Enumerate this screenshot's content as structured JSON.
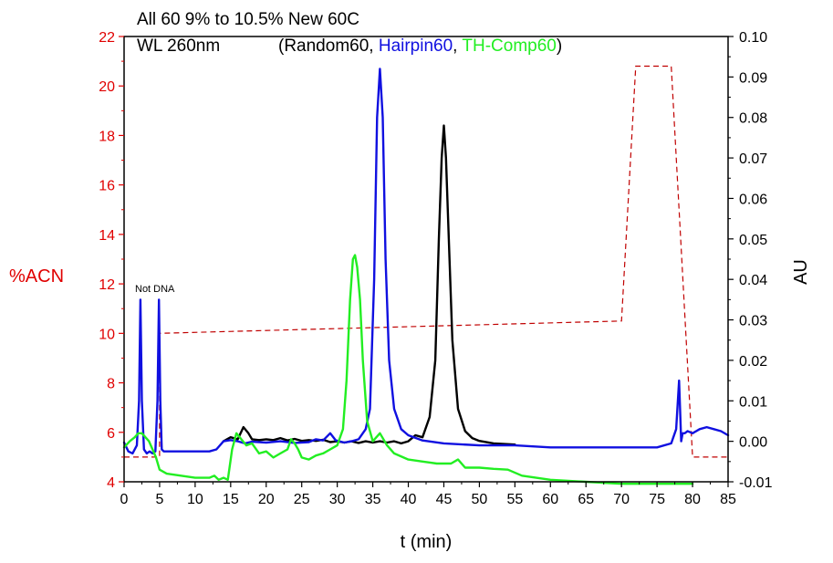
{
  "chart_data": {
    "type": "line",
    "title_line1": "All 60 9% to 10.5% New 60C",
    "title_line2_prefix": "WL 260nm",
    "legend": {
      "open": "(",
      "items": [
        {
          "label": "Random60",
          "color": "#000000"
        },
        {
          "label": "Hairpin60",
          "color": "#1010e0"
        },
        {
          "label": "TH-Comp60",
          "color": "#22ee22"
        }
      ],
      "separator": ", ",
      "close": ")"
    },
    "xlabel": "t (min)",
    "ylabel_left": "%ACN",
    "ylabel_right": "AU",
    "xlim": [
      0,
      85
    ],
    "ylim_left": [
      4,
      22
    ],
    "ylim_right": [
      -0.01,
      0.1
    ],
    "x_ticks": [
      "0",
      "5",
      "10",
      "15",
      "20",
      "25",
      "30",
      "35",
      "40",
      "45",
      "50",
      "55",
      "60",
      "65",
      "70",
      "75",
      "80",
      "85"
    ],
    "y_left_ticks": [
      "4",
      "6",
      "8",
      "10",
      "12",
      "14",
      "16",
      "18",
      "20",
      "22"
    ],
    "y_right_ticks": [
      "-0.01",
      "0.00",
      "0.01",
      "0.02",
      "0.03",
      "0.04",
      "0.05",
      "0.06",
      "0.07",
      "0.08",
      "0.09",
      "0.10"
    ],
    "annotation": "Not DNA",
    "colors": {
      "left_axis": "#e00000",
      "gradient": "#c00000"
    },
    "gradient_acn": {
      "name": "%ACN",
      "x": [
        0,
        5,
        5,
        70,
        72,
        77,
        80,
        85
      ],
      "y": [
        5,
        5,
        10,
        10.5,
        20.8,
        20.8,
        5,
        5
      ]
    },
    "series": [
      {
        "name": "Random60",
        "color": "#000000",
        "x": [
          14,
          15,
          16,
          16.8,
          17.5,
          18,
          19,
          20,
          21,
          22,
          23,
          24,
          25,
          26,
          27,
          28,
          29,
          30,
          31,
          32,
          33,
          34,
          35,
          36,
          37,
          38,
          39,
          40,
          41,
          42,
          43,
          43.8,
          44.3,
          44.7,
          45,
          45.3,
          45.7,
          46.2,
          47,
          48,
          49,
          50,
          52,
          55
        ],
        "y": [
          0.0,
          0.001,
          0.0005,
          0.0035,
          0.002,
          0.0005,
          0.0003,
          0.0005,
          0.0003,
          0.0008,
          0.0002,
          0.0006,
          0.0001,
          0.0003,
          0.0001,
          0.0004,
          -0.0002,
          0.0,
          -0.0003,
          0.0,
          -0.0004,
          0.0,
          -0.0003,
          0.0,
          -0.0003,
          0.0,
          -0.0005,
          0.0,
          0.0015,
          0.001,
          0.006,
          0.02,
          0.05,
          0.07,
          0.078,
          0.07,
          0.05,
          0.025,
          0.008,
          0.0025,
          0.0008,
          0.0001,
          -0.0005,
          -0.0008
        ]
      },
      {
        "name": "Hairpin60",
        "color": "#1010e0",
        "x": [
          0,
          0.6,
          1.2,
          1.8,
          2.1,
          2.3,
          2.5,
          2.8,
          3.2,
          3.6,
          4.0,
          4.4,
          4.7,
          4.9,
          5.1,
          5.3,
          5.6,
          6,
          8,
          10,
          12,
          13,
          14,
          15,
          16,
          17,
          18,
          20,
          22,
          24,
          26,
          27,
          28,
          29,
          29.8,
          30.3,
          31,
          32,
          33,
          34,
          34.6,
          35.2,
          35.6,
          36,
          36.4,
          36.8,
          37.3,
          38,
          39,
          40,
          42,
          45,
          50,
          55,
          60,
          65,
          70,
          75,
          77,
          77.7,
          78.1,
          78.4,
          78.6,
          78.9,
          79.3,
          80,
          81,
          82,
          83,
          84,
          85
        ],
        "y": [
          -0.0003,
          -0.0025,
          -0.003,
          -0.001,
          0.01,
          0.035,
          0.01,
          -0.002,
          -0.003,
          -0.0025,
          -0.003,
          -0.0025,
          0.01,
          0.035,
          0.01,
          -0.002,
          -0.0025,
          -0.0025,
          -0.0025,
          -0.0025,
          -0.0025,
          -0.002,
          0.0,
          0.0003,
          0.0,
          -0.0005,
          -0.0001,
          -0.0003,
          0.0,
          -0.0004,
          -0.0002,
          0.0005,
          0.0002,
          0.002,
          0.0002,
          0.0,
          -0.0003,
          0.0,
          0.0005,
          0.003,
          0.008,
          0.04,
          0.08,
          0.092,
          0.08,
          0.045,
          0.02,
          0.008,
          0.003,
          0.0015,
          0.0002,
          -0.0005,
          -0.001,
          -0.001,
          -0.0015,
          -0.0015,
          -0.0015,
          -0.0015,
          -0.0005,
          0.003,
          0.015,
          0.0,
          0.002,
          0.002,
          0.0025,
          0.002,
          0.003,
          0.0035,
          0.003,
          0.0025,
          0.0015
        ]
      },
      {
        "name": "TH-Comp60",
        "color": "#22ee22",
        "x": [
          0,
          0.8,
          1.5,
          2,
          2.5,
          3,
          3.5,
          4,
          4.5,
          5,
          6,
          8,
          10,
          12,
          12.7,
          13.3,
          14,
          14.6,
          15.2,
          15.8,
          16.5,
          17.2,
          18,
          19,
          20,
          21,
          22,
          23,
          23.5,
          24,
          24.5,
          25,
          26,
          27,
          28,
          29,
          30,
          30.8,
          31.3,
          31.8,
          32.2,
          32.5,
          32.8,
          33.2,
          33.6,
          34.2,
          35,
          36,
          37,
          38,
          40,
          42,
          44,
          45,
          46,
          47,
          48,
          50,
          52,
          54,
          56,
          58,
          60,
          65,
          70,
          75,
          80
        ],
        "y": [
          -0.0015,
          0.0,
          0.001,
          0.002,
          0.002,
          0.001,
          0.0,
          -0.002,
          -0.004,
          -0.007,
          -0.008,
          -0.0085,
          -0.009,
          -0.009,
          -0.0085,
          -0.0095,
          -0.009,
          -0.0095,
          -0.002,
          0.002,
          0.0005,
          -0.001,
          -0.0005,
          -0.003,
          -0.0025,
          -0.004,
          -0.003,
          -0.002,
          0.0005,
          -0.0005,
          -0.002,
          -0.004,
          -0.0045,
          -0.0035,
          -0.003,
          -0.002,
          -0.001,
          0.003,
          0.015,
          0.035,
          0.045,
          0.046,
          0.043,
          0.035,
          0.02,
          0.005,
          0.0,
          0.002,
          -0.001,
          -0.003,
          -0.0045,
          -0.005,
          -0.0055,
          -0.0055,
          -0.0055,
          -0.0045,
          -0.0065,
          -0.0065,
          -0.0068,
          -0.007,
          -0.0085,
          -0.009,
          -0.0095,
          -0.01,
          -0.0105,
          -0.0105,
          -0.0105
        ]
      }
    ]
  }
}
